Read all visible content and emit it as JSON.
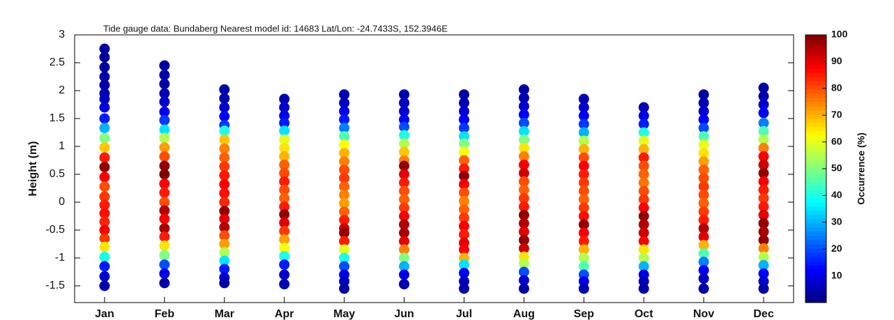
{
  "chart_data": {
    "type": "scatter",
    "title": "Tide gauge data: Bundaberg Nearest model id: 14683  Lat/Lon: -24.7433S, 152.3946E",
    "y_label": "Height (m)",
    "colorbar_label": "Occurrence (%)",
    "colormap": "jet",
    "clim": [
      0,
      100
    ],
    "colorbar_ticks": [
      10,
      20,
      30,
      40,
      50,
      60,
      70,
      80,
      90,
      100
    ],
    "categories": [
      "Jan",
      "Feb",
      "Mar",
      "Apr",
      "May",
      "Jun",
      "Jul",
      "Aug",
      "Sep",
      "Oct",
      "Nov",
      "Dec"
    ],
    "ylim": [
      -1.8,
      3
    ],
    "yticks": [
      -1.5,
      -1,
      -0.5,
      0,
      0.5,
      1,
      1.5,
      2,
      2.5,
      3
    ],
    "columns": [
      {
        "heights": [
          2.75,
          2.6,
          2.42,
          2.25,
          2.1,
          1.95,
          1.85,
          1.7,
          1.5,
          1.33,
          1.15,
          0.98,
          0.8,
          0.63,
          0.45,
          0.28,
          0.1,
          -0.05,
          -0.2,
          -0.35,
          -0.5,
          -0.65,
          -0.8,
          -0.98,
          -1.15,
          -1.33,
          -1.5
        ],
        "occurrence": [
          3,
          3,
          3,
          4,
          4,
          5,
          6,
          10,
          15,
          30,
          50,
          68,
          85,
          98,
          88,
          80,
          82,
          85,
          86,
          84,
          88,
          82,
          65,
          40,
          15,
          8,
          4
        ]
      },
      {
        "heights": [
          2.45,
          2.28,
          2.12,
          1.95,
          1.8,
          1.62,
          1.47,
          1.3,
          1.15,
          0.98,
          0.82,
          0.65,
          0.5,
          0.33,
          0.17,
          0,
          -0.15,
          -0.3,
          -0.47,
          -0.62,
          -0.78,
          -0.95,
          -1.12,
          -1.28,
          -1.45
        ],
        "occurrence": [
          3,
          4,
          4,
          5,
          8,
          12,
          18,
          35,
          55,
          72,
          80,
          98,
          100,
          88,
          85,
          80,
          95,
          88,
          96,
          85,
          65,
          50,
          20,
          10,
          4
        ]
      },
      {
        "heights": [
          2.02,
          1.86,
          1.7,
          1.54,
          1.38,
          1.28,
          1.12,
          0.96,
          0.8,
          0.64,
          0.48,
          0.32,
          0.16,
          0,
          -0.16,
          -0.3,
          -0.45,
          -0.6,
          -0.75,
          -0.9,
          -1.05,
          -1.2,
          -1.35,
          -1.45
        ],
        "occurrence": [
          4,
          5,
          8,
          12,
          18,
          40,
          68,
          75,
          78,
          82,
          85,
          88,
          86,
          84,
          98,
          90,
          95,
          80,
          72,
          55,
          35,
          15,
          8,
          4
        ]
      },
      {
        "heights": [
          1.85,
          1.7,
          1.55,
          1.42,
          1.28,
          1.12,
          0.97,
          0.82,
          0.67,
          0.52,
          0.37,
          0.22,
          0.07,
          -0.08,
          -0.22,
          -0.37,
          -0.52,
          -0.67,
          -0.82,
          -0.97,
          -1.12,
          -1.3,
          -1.47
        ],
        "occurrence": [
          5,
          8,
          10,
          15,
          35,
          60,
          65,
          70,
          78,
          80,
          85,
          80,
          78,
          85,
          98,
          90,
          82,
          72,
          62,
          40,
          15,
          8,
          5
        ]
      },
      {
        "heights": [
          1.93,
          1.78,
          1.63,
          1.48,
          1.33,
          1.18,
          1.03,
          0.88,
          0.73,
          0.58,
          0.43,
          0.28,
          0.13,
          -0.02,
          -0.17,
          -0.32,
          -0.47,
          -0.55,
          -0.7,
          -0.85,
          -1.0,
          -1.15,
          -1.3,
          -1.42,
          -1.55
        ],
        "occurrence": [
          5,
          6,
          10,
          15,
          25,
          45,
          62,
          70,
          75,
          80,
          82,
          78,
          75,
          72,
          78,
          85,
          92,
          98,
          85,
          60,
          40,
          20,
          10,
          6,
          4
        ]
      },
      {
        "heights": [
          1.93,
          1.78,
          1.63,
          1.48,
          1.35,
          1.2,
          1.05,
          0.9,
          0.75,
          0.65,
          0.5,
          0.35,
          0.2,
          0.05,
          -0.1,
          -0.25,
          -0.4,
          -0.55,
          -0.7,
          -0.85,
          -1.0,
          -1.15,
          -1.3,
          -1.47
        ],
        "occurrence": [
          5,
          6,
          8,
          12,
          20,
          40,
          55,
          68,
          75,
          98,
          90,
          85,
          80,
          78,
          82,
          88,
          95,
          96,
          90,
          75,
          50,
          30,
          10,
          5
        ]
      },
      {
        "heights": [
          1.93,
          1.78,
          1.63,
          1.48,
          1.33,
          1.18,
          1.05,
          0.9,
          0.75,
          0.6,
          0.47,
          0.32,
          0.17,
          0.02,
          -0.13,
          -0.28,
          -0.43,
          -0.58,
          -0.73,
          -0.85,
          -1.0,
          -1.12,
          -1.27,
          -1.42,
          -1.55
        ],
        "occurrence": [
          4,
          5,
          8,
          12,
          18,
          35,
          50,
          62,
          78,
          85,
          98,
          88,
          80,
          75,
          78,
          82,
          88,
          85,
          90,
          88,
          70,
          35,
          12,
          6,
          4
        ]
      },
      {
        "heights": [
          2.02,
          1.87,
          1.72,
          1.57,
          1.42,
          1.27,
          1.12,
          0.97,
          0.82,
          0.67,
          0.52,
          0.37,
          0.22,
          0.07,
          -0.08,
          -0.23,
          -0.38,
          -0.53,
          -0.68,
          -0.83,
          -0.98,
          -1.1,
          -1.25,
          -1.4,
          -1.55
        ],
        "occurrence": [
          4,
          5,
          8,
          12,
          20,
          35,
          50,
          65,
          75,
          88,
          92,
          80,
          78,
          82,
          85,
          98,
          95,
          90,
          98,
          92,
          65,
          55,
          20,
          8,
          4
        ]
      },
      {
        "heights": [
          1.85,
          1.7,
          1.55,
          1.4,
          1.25,
          1.1,
          0.95,
          0.8,
          0.65,
          0.5,
          0.35,
          0.2,
          0.05,
          -0.1,
          -0.25,
          -0.4,
          -0.55,
          -0.7,
          -0.85,
          -1.0,
          -1.15,
          -1.3,
          -1.42,
          -1.55
        ],
        "occurrence": [
          5,
          8,
          12,
          18,
          30,
          55,
          70,
          80,
          88,
          85,
          82,
          80,
          78,
          82,
          86,
          98,
          88,
          85,
          70,
          55,
          45,
          20,
          10,
          5
        ]
      },
      {
        "heights": [
          1.7,
          1.55,
          1.4,
          1.25,
          1.1,
          0.95,
          0.8,
          0.65,
          0.5,
          0.35,
          0.2,
          0.05,
          -0.1,
          -0.25,
          -0.4,
          -0.55,
          -0.7,
          -0.85,
          -1.0,
          -1.15,
          -1.3,
          -1.42,
          -1.55
        ],
        "occurrence": [
          6,
          10,
          15,
          40,
          60,
          70,
          85,
          80,
          78,
          76,
          80,
          82,
          88,
          98,
          95,
          92,
          88,
          65,
          55,
          30,
          10,
          6,
          4
        ]
      },
      {
        "heights": [
          1.93,
          1.78,
          1.63,
          1.48,
          1.33,
          1.18,
          1.03,
          0.88,
          0.73,
          0.58,
          0.43,
          0.28,
          0.13,
          -0.02,
          -0.17,
          -0.32,
          -0.47,
          -0.62,
          -0.77,
          -0.92,
          -1.07,
          -1.22,
          -1.37,
          -1.55
        ],
        "occurrence": [
          4,
          5,
          8,
          12,
          20,
          45,
          60,
          65,
          72,
          78,
          80,
          82,
          80,
          78,
          82,
          85,
          95,
          90,
          70,
          45,
          25,
          12,
          6,
          4
        ]
      },
      {
        "heights": [
          2.05,
          1.9,
          1.75,
          1.6,
          1.42,
          1.27,
          1.12,
          0.97,
          0.82,
          0.67,
          0.52,
          0.37,
          0.22,
          0.07,
          -0.08,
          -0.23,
          -0.38,
          -0.53,
          -0.68,
          -0.83,
          -0.98,
          -1.13,
          -1.28,
          -1.42,
          -1.55
        ],
        "occurrence": [
          4,
          5,
          8,
          12,
          25,
          45,
          55,
          75,
          88,
          92,
          98,
          88,
          85,
          82,
          85,
          90,
          98,
          96,
          98,
          75,
          55,
          30,
          12,
          8,
          4
        ]
      }
    ]
  }
}
